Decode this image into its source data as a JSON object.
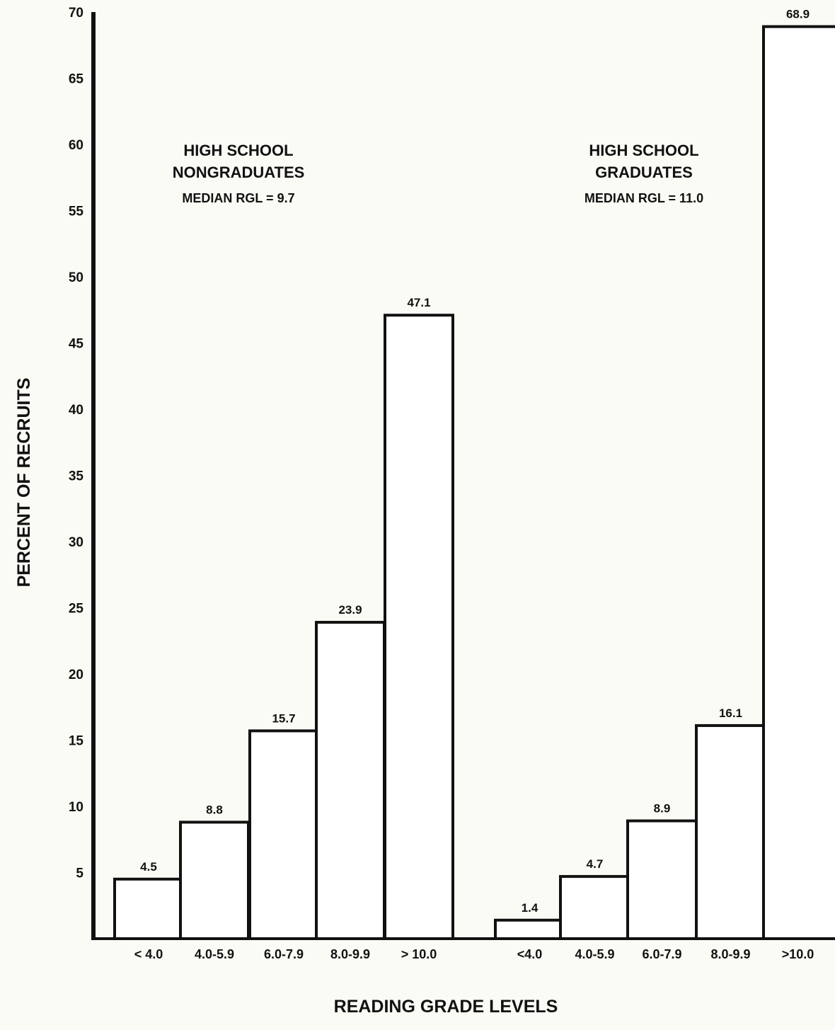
{
  "chart_data": {
    "type": "bar",
    "ylabel": "PERCENT OF RECRUITS",
    "xlabel": "READING GRADE LEVELS",
    "ylim": [
      0,
      70
    ],
    "yticks": [
      5,
      10,
      15,
      20,
      25,
      30,
      35,
      40,
      45,
      50,
      55,
      60,
      65,
      70
    ],
    "grid": false,
    "bar_fill": "#ffffff",
    "bar_stroke": "#111111",
    "groups": [
      {
        "title_lines": [
          "HIGH SCHOOL",
          "NONGRADUATES"
        ],
        "median": "MEDIAN RGL = 9.7",
        "categories": [
          "< 4.0",
          "4.0-5.9",
          "6.0-7.9",
          "8.0-9.9",
          "> 10.0"
        ],
        "values": [
          4.5,
          8.8,
          15.7,
          23.9,
          47.1
        ],
        "value_labels": [
          "4.5",
          "8.8",
          "15.7",
          "23.9",
          "47.1"
        ]
      },
      {
        "title_lines": [
          "HIGH SCHOOL",
          "GRADUATES"
        ],
        "median": "MEDIAN RGL = 11.0",
        "categories": [
          "<4.0",
          "4.0-5.9",
          "6.0-7.9",
          "8.0-9.9",
          ">10.0"
        ],
        "values": [
          1.4,
          4.7,
          8.9,
          16.1,
          68.9
        ],
        "value_labels": [
          "1.4",
          "4.7",
          "8.9",
          "16.1",
          "68.9"
        ]
      }
    ]
  }
}
